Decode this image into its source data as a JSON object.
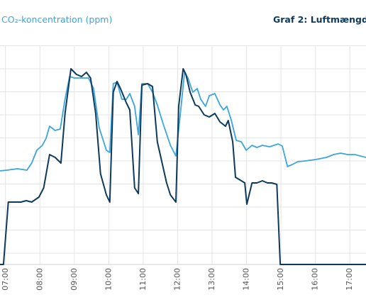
{
  "chart_data": {
    "type": "line",
    "title": "CO₂-koncentration (ppm)",
    "subtitle": "Graf 2: Luftmængde (",
    "xlim": [
      6.84,
      17.47
    ],
    "xticks": [
      {
        "value": 7,
        "label": "07:00"
      },
      {
        "value": 8,
        "label": "08:00"
      },
      {
        "value": 9,
        "label": "09:00"
      },
      {
        "value": 10,
        "label": "10:00"
      },
      {
        "value": 11,
        "label": "11:00"
      },
      {
        "value": 12,
        "label": "12:00"
      },
      {
        "value": 13,
        "label": "13:00"
      },
      {
        "value": 14,
        "label": "14:00"
      },
      {
        "value": 15,
        "label": "15:00"
      },
      {
        "value": 16,
        "label": "16:00"
      },
      {
        "value": 17,
        "label": "17:00"
      }
    ],
    "ylim": [
      0,
      325
    ],
    "ygrid": [
      16,
      48.5,
      81,
      113.5,
      146,
      178.5,
      211,
      243.5,
      276,
      308.5
    ],
    "grid": true,
    "series": [
      {
        "color": "#3aa5dc",
        "x": [
          6.84,
          7.04,
          7.35,
          7.62,
          7.76,
          7.91,
          8.07,
          8.18,
          8.28,
          8.44,
          8.59,
          8.73,
          8.86,
          9.0,
          9.21,
          9.41,
          9.56,
          9.72,
          9.93,
          10.03,
          10.13,
          10.24,
          10.38,
          10.51,
          10.61,
          10.75,
          10.86,
          10.96,
          11.13,
          11.27,
          11.41,
          11.58,
          11.79,
          11.95,
          12.09,
          12.2,
          12.3,
          12.44,
          12.57,
          12.67,
          12.81,
          12.92,
          13.08,
          13.23,
          13.33,
          13.43,
          13.56,
          13.7,
          13.85,
          13.99,
          14.16,
          14.3,
          14.46,
          14.67,
          14.92,
          15.04,
          15.19,
          15.33,
          15.49,
          15.7,
          16.01,
          16.32,
          16.53,
          16.73,
          16.94,
          17.14,
          17.47
        ],
        "values": [
          132,
          133,
          135,
          133,
          143,
          161,
          168,
          178,
          195,
          189,
          191,
          233,
          265,
          263,
          263,
          263,
          248,
          193,
          161,
          158,
          255,
          257,
          233,
          233,
          241,
          223,
          183,
          255,
          255,
          243,
          225,
          198,
          168,
          153,
          218,
          271,
          263,
          243,
          248,
          233,
          223,
          238,
          241,
          225,
          218,
          223,
          203,
          175,
          173,
          161,
          168,
          165,
          168,
          166,
          170,
          167,
          138,
          141,
          145,
          146,
          148,
          151,
          155,
          157,
          155,
          155,
          151
        ]
      },
      {
        "color": "#0d3a5c",
        "x": [
          6.84,
          6.94,
          7.08,
          7.25,
          7.45,
          7.6,
          7.76,
          7.97,
          8.11,
          8.28,
          8.44,
          8.61,
          8.73,
          8.9,
          9.06,
          9.21,
          9.35,
          9.47,
          9.62,
          9.76,
          9.93,
          10.03,
          10.13,
          10.24,
          10.34,
          10.51,
          10.61,
          10.75,
          10.86,
          10.96,
          11.13,
          11.27,
          11.41,
          11.68,
          11.79,
          11.95,
          12.03,
          12.16,
          12.24,
          12.36,
          12.51,
          12.61,
          12.77,
          12.92,
          13.08,
          13.23,
          13.39,
          13.47,
          13.6,
          13.68,
          13.85,
          13.95,
          14.01,
          14.16,
          14.3,
          14.46,
          14.61,
          14.73,
          14.88,
          14.98,
          15.08,
          17.47
        ],
        "values": [
          0,
          0,
          88,
          88,
          88,
          90,
          88,
          95,
          108,
          155,
          151,
          143,
          213,
          276,
          268,
          265,
          271,
          263,
          213,
          128,
          98,
          88,
          243,
          258,
          248,
          228,
          218,
          108,
          100,
          253,
          255,
          251,
          173,
          115,
          98,
          88,
          223,
          276,
          268,
          243,
          225,
          223,
          211,
          208,
          213,
          201,
          195,
          203,
          173,
          123,
          118,
          115,
          85,
          115,
          115,
          118,
          115,
          115,
          113,
          0,
          0,
          0
        ]
      }
    ]
  }
}
